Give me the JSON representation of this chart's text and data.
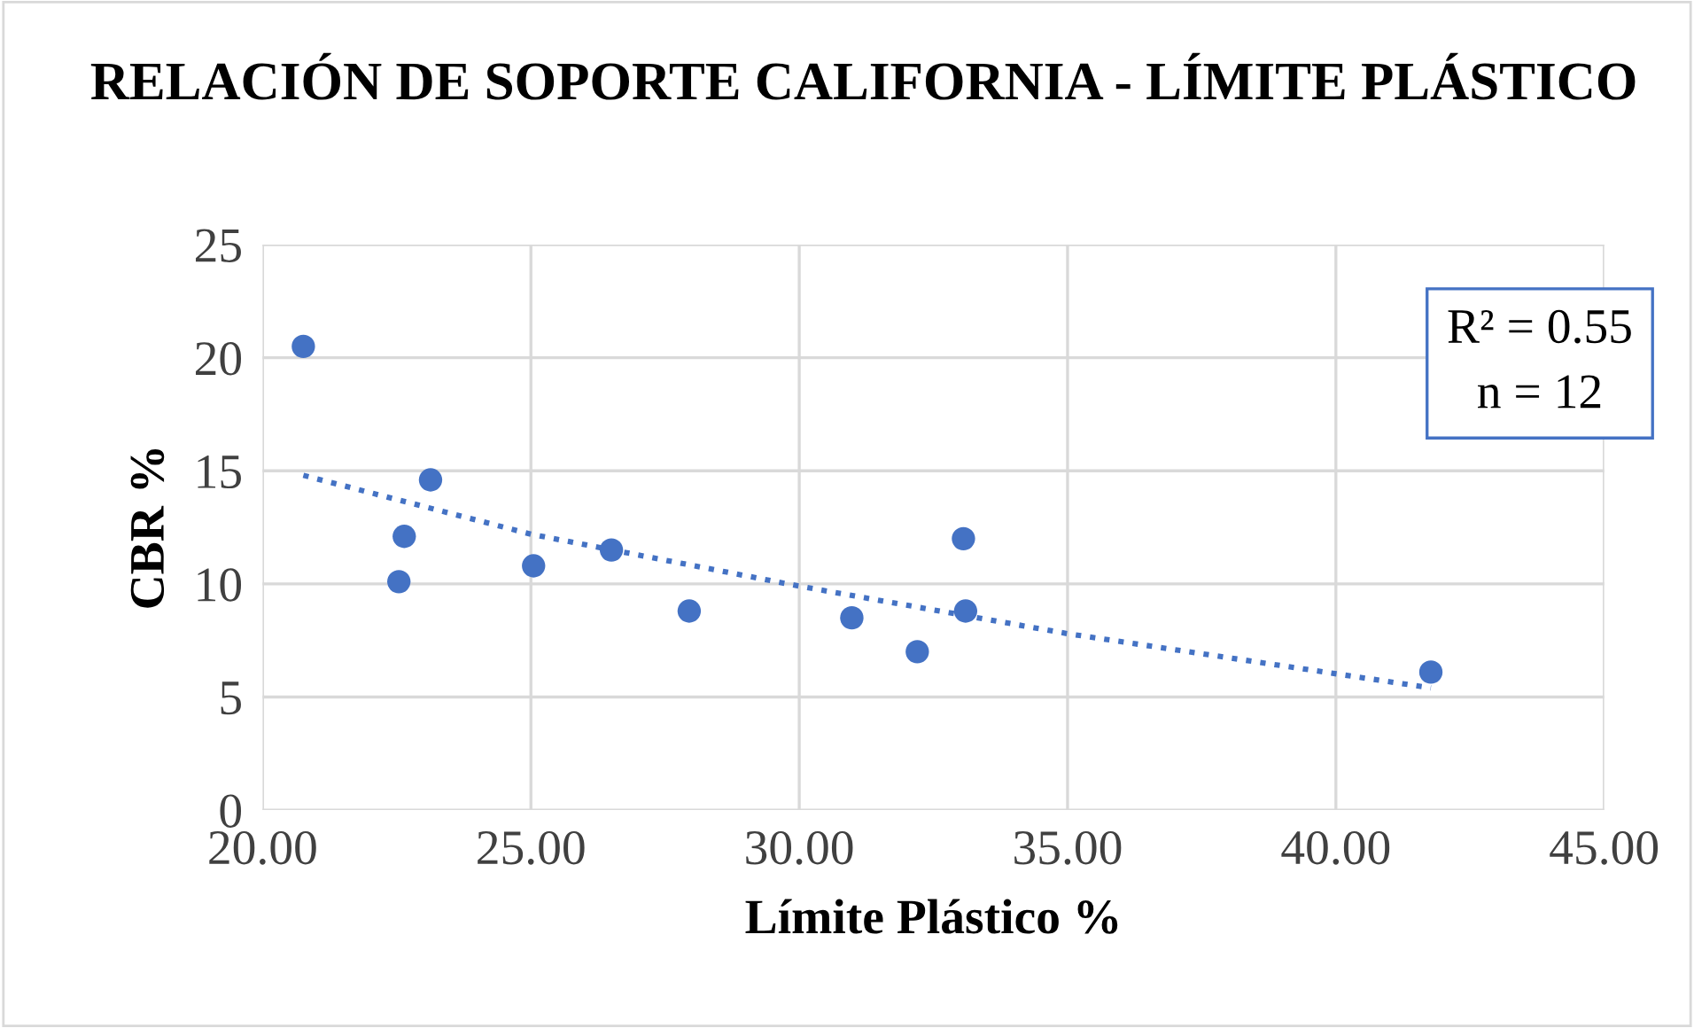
{
  "chart_data": {
    "type": "scatter",
    "title": "RELACIÓN DE SOPORTE CALIFORNIA - LÍMITE PLÁSTICO",
    "xlabel": "Límite Plástico %",
    "ylabel": "CBR %",
    "series": [
      {
        "color": "#4472c4",
        "marker": "circle",
        "x": [
          20.76,
          23.13,
          22.64,
          22.54,
          25.05,
          26.5,
          27.95,
          30.98,
          32.2,
          33.06,
          33.1,
          41.77
        ],
        "values": [
          20.5,
          14.6,
          12.1,
          10.1,
          10.8,
          11.5,
          8.8,
          8.5,
          7.0,
          12.0,
          8.8,
          6.1
        ]
      },
      {
        "type": "line",
        "color": "#4472c4",
        "line_style": "dotted",
        "x": [
          20.76,
          25,
          30,
          35,
          41.77
        ],
        "values": [
          14.8,
          12.2,
          9.9,
          7.8,
          5.4
        ]
      }
    ],
    "annotations": [
      "R² = 0.55",
      "n = 12"
    ],
    "xlim": [
      20,
      45
    ],
    "xticks": [
      {
        "value": 20,
        "label": "20.00"
      },
      {
        "value": 25,
        "label": "25.00"
      },
      {
        "value": 30,
        "label": "30.00"
      },
      {
        "value": 35,
        "label": "35.00"
      },
      {
        "value": 40,
        "label": "40.00"
      },
      {
        "value": 45,
        "label": "45.00"
      }
    ],
    "ylim": [
      0,
      25
    ],
    "yticks": [
      0,
      5,
      10,
      15,
      20,
      25
    ],
    "grid": true,
    "legend": false
  }
}
